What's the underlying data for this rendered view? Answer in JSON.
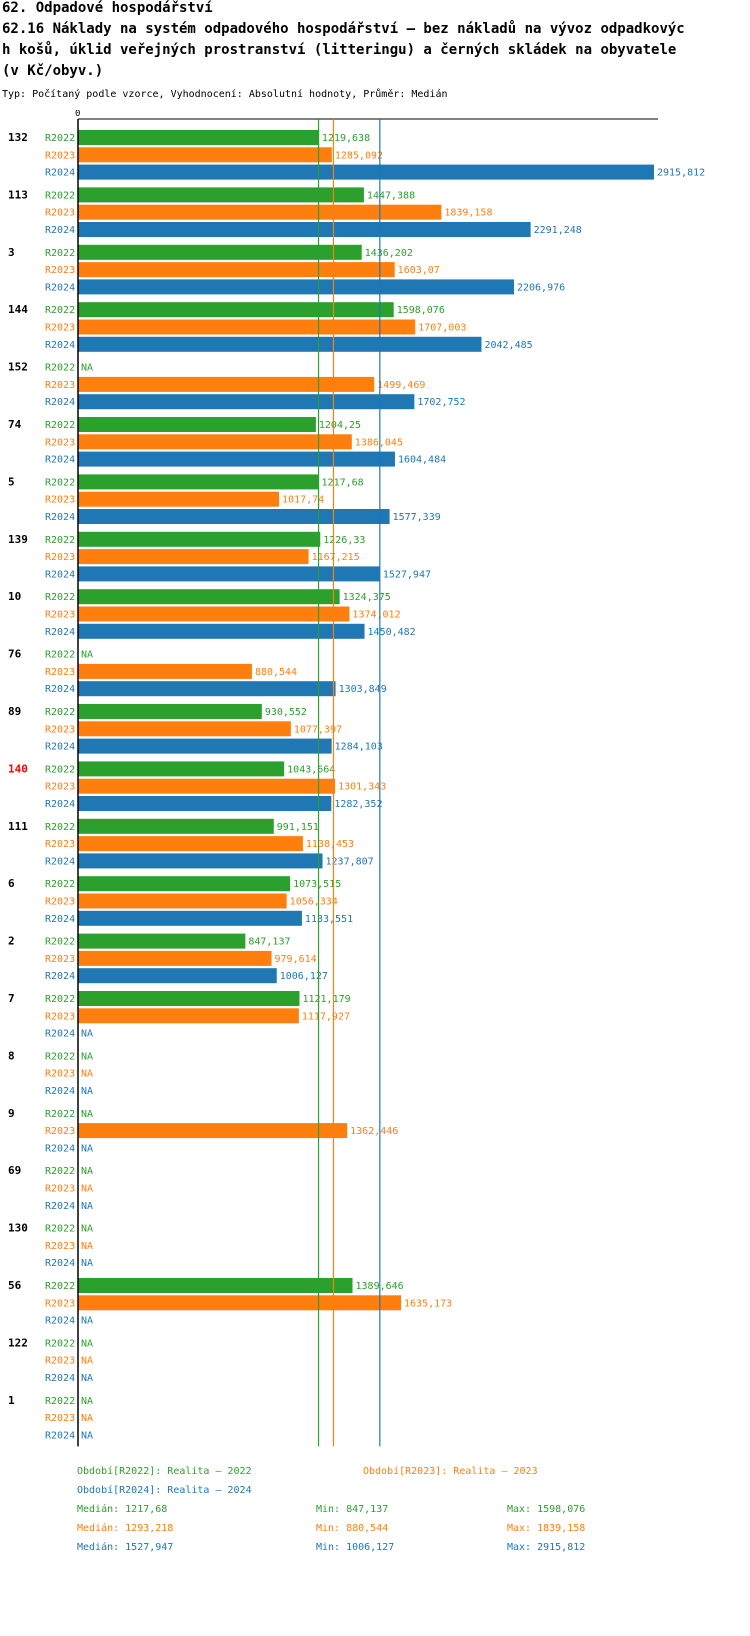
{
  "header": {
    "section": "62. Odpadové hospodářství",
    "title_lines": [
      "62.16 Náklady na systém odpadového hospodářství – bez nákladů na vývoz odpadkovýc",
      "h košů, úklid veřejných prostranství (litteringu) a černých skládek na obyvatele",
      "(v Kč/obyv.)"
    ],
    "subtitle": "Typ: Počítaný podle vzorce, Vyhodnocení: Absolutní hodnoty, Průměr: Medián"
  },
  "colors": {
    "R2022": "#2ca02c",
    "R2023": "#ff7f0e",
    "R2024": "#1f77b4",
    "highlight": "#ff0000"
  },
  "chart_data": {
    "type": "bar",
    "orientation": "horizontal",
    "axis_zero_label": "0",
    "xlim": [
      0,
      2915.812
    ],
    "series_names": [
      "R2022",
      "R2023",
      "R2024"
    ],
    "highlight_category": "140",
    "categories": [
      {
        "label": "132",
        "values": [
          1219.638,
          1285.092,
          2915.812
        ],
        "labels": [
          "1219,638",
          "1285,092",
          "2915,812"
        ]
      },
      {
        "label": "113",
        "values": [
          1447.388,
          1839.158,
          2291.248
        ],
        "labels": [
          "1447,388",
          "1839,158",
          "2291,248"
        ]
      },
      {
        "label": "3",
        "values": [
          1436.202,
          1603.07,
          2206.976
        ],
        "labels": [
          "1436,202",
          "1603,07",
          "2206,976"
        ]
      },
      {
        "label": "144",
        "values": [
          1598.076,
          1707.003,
          2042.485
        ],
        "labels": [
          "1598,076",
          "1707,003",
          "2042,485"
        ]
      },
      {
        "label": "152",
        "values": [
          null,
          1499.469,
          1702.752
        ],
        "labels": [
          "NA",
          "1499,469",
          "1702,752"
        ]
      },
      {
        "label": "74",
        "values": [
          1204.25,
          1386.045,
          1604.484
        ],
        "labels": [
          "1204,25",
          "1386,045",
          "1604,484"
        ]
      },
      {
        "label": "5",
        "values": [
          1217.68,
          1017.74,
          1577.339
        ],
        "labels": [
          "1217,68",
          "1017,74",
          "1577,339"
        ]
      },
      {
        "label": "139",
        "values": [
          1226.33,
          1167.215,
          1527.947
        ],
        "labels": [
          "1226,33",
          "1167,215",
          "1527,947"
        ]
      },
      {
        "label": "10",
        "values": [
          1324.375,
          1374.012,
          1450.482
        ],
        "labels": [
          "1324,375",
          "1374,012",
          "1450,482"
        ]
      },
      {
        "label": "76",
        "values": [
          null,
          880.544,
          1303.849
        ],
        "labels": [
          "NA",
          "880,544",
          "1303,849"
        ]
      },
      {
        "label": "89",
        "values": [
          930.552,
          1077.397,
          1284.103
        ],
        "labels": [
          "930,552",
          "1077,397",
          "1284,103"
        ]
      },
      {
        "label": "140",
        "values": [
          1043.664,
          1301.343,
          1282.352
        ],
        "labels": [
          "1043,664",
          "1301,343",
          "1282,352"
        ]
      },
      {
        "label": "111",
        "values": [
          991.151,
          1138.453,
          1237.807
        ],
        "labels": [
          "991,151",
          "1138,453",
          "1237,807"
        ]
      },
      {
        "label": "6",
        "values": [
          1073.515,
          1056.334,
          1133.551
        ],
        "labels": [
          "1073,515",
          "1056,334",
          "1133,551"
        ]
      },
      {
        "label": "2",
        "values": [
          847.137,
          979.614,
          1006.127
        ],
        "labels": [
          "847,137",
          "979,614",
          "1006,127"
        ]
      },
      {
        "label": "7",
        "values": [
          1121.179,
          1117.927,
          null
        ],
        "labels": [
          "1121,179",
          "1117,927",
          "NA"
        ]
      },
      {
        "label": "8",
        "values": [
          null,
          null,
          null
        ],
        "labels": [
          "NA",
          "NA",
          "NA"
        ]
      },
      {
        "label": "9",
        "values": [
          null,
          1362.446,
          null
        ],
        "labels": [
          "NA",
          "1362,446",
          "NA"
        ]
      },
      {
        "label": "69",
        "values": [
          null,
          null,
          null
        ],
        "labels": [
          "NA",
          "NA",
          "NA"
        ]
      },
      {
        "label": "130",
        "values": [
          null,
          null,
          null
        ],
        "labels": [
          "NA",
          "NA",
          "NA"
        ]
      },
      {
        "label": "56",
        "values": [
          1389.646,
          1635.173,
          null
        ],
        "labels": [
          "1389,646",
          "1635,173",
          "NA"
        ]
      },
      {
        "label": "122",
        "values": [
          null,
          null,
          null
        ],
        "labels": [
          "NA",
          "NA",
          "NA"
        ]
      },
      {
        "label": "1",
        "values": [
          null,
          null,
          null
        ],
        "labels": [
          "NA",
          "NA",
          "NA"
        ]
      }
    ],
    "median_lines": [
      1217.68,
      1293.218,
      1527.947
    ]
  },
  "legend": {
    "periods": [
      "Období[R2022]: Realita – 2022",
      "Období[R2023]: Realita – 2023",
      "Období[R2024]: Realita – 2024"
    ],
    "stats": [
      {
        "median": "Medián: 1217,68",
        "min": "Min: 847,137",
        "max": "Max: 1598,076"
      },
      {
        "median": "Medián: 1293,218",
        "min": "Min: 880,544",
        "max": "Max: 1839,158"
      },
      {
        "median": "Medián: 1527,947",
        "min": "Min: 1006,127",
        "max": "Max: 2915,812"
      }
    ]
  }
}
